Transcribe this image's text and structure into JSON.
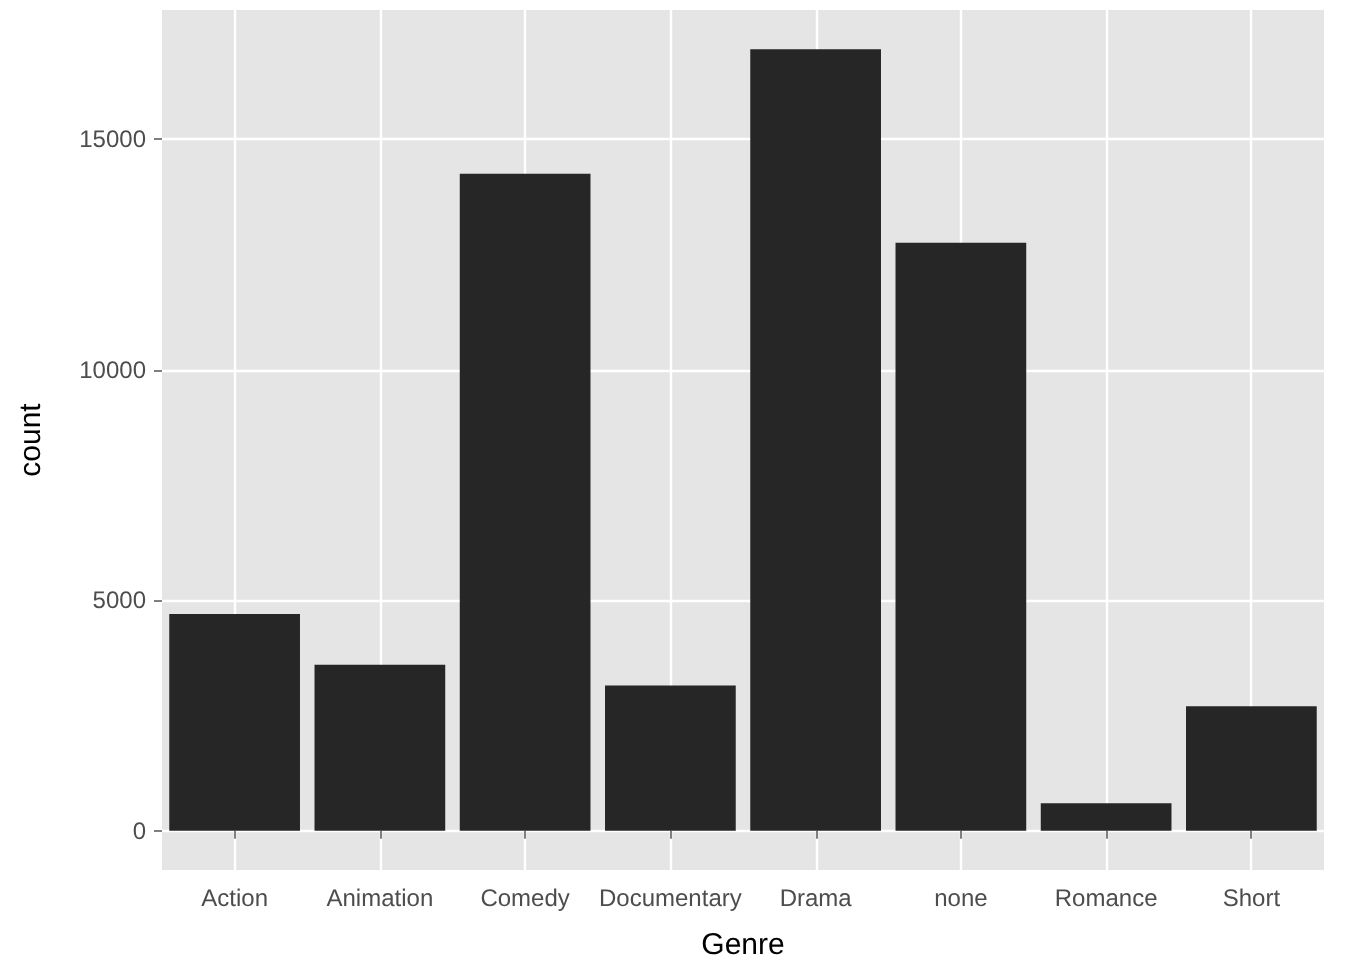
{
  "chart_data": {
    "type": "bar",
    "xlabel": "Genre",
    "ylabel": "count",
    "categories": [
      "Action",
      "Animation",
      "Comedy",
      "Documentary",
      "Drama",
      "none",
      "Romance",
      "Short"
    ],
    "values": [
      4700,
      3600,
      14250,
      3150,
      16950,
      12750,
      600,
      2700
    ],
    "color": "#262626",
    "ylim": [
      -850,
      17800
    ],
    "yticks": [
      0,
      5000,
      10000,
      15000
    ],
    "grid": true
  }
}
